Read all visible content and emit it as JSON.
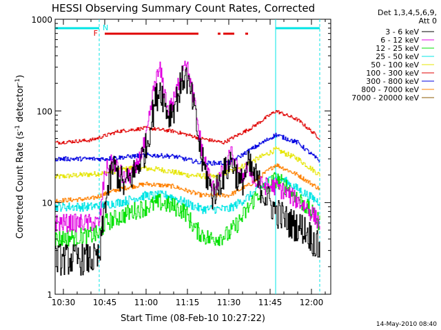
{
  "chart_data": {
    "type": "line",
    "title": "HESSI Observing Summary Count Rates, Corrected",
    "ylabel_main": "Corrected Count Rate (s",
    "ylabel_exp1": "-1",
    "ylabel_mid": " detector",
    "ylabel_exp2": "-1",
    "ylabel_end": ")",
    "xlabel": "Start Time (08-Feb-10 10:27:22)",
    "timestamp": "14-May-2010 08:40",
    "y_scale": "log",
    "ylim": [
      1,
      1000
    ],
    "xlim": [
      "10:27",
      "12:07"
    ],
    "x_ticks": [
      "10:30",
      "10:45",
      "11:00",
      "11:15",
      "11:30",
      "11:45",
      "12:00"
    ],
    "y_ticks": [
      "1",
      "10",
      "100",
      "1000"
    ],
    "legend_header": [
      "Det 1,3,4,5,6,9,",
      "Att 0"
    ],
    "flag_labels": {
      "night": "N",
      "flare": "F"
    },
    "flag_bars": [
      {
        "flag": "night",
        "color": "#00e5e5",
        "segments": [
          [
            "10:27",
            "10:43"
          ],
          [
            "11:47",
            "12:03"
          ]
        ]
      },
      {
        "flag": "flare",
        "color": "#e00000",
        "segments": [
          [
            "10:45",
            "11:19"
          ],
          [
            "11:26",
            "11:27"
          ],
          [
            "11:28",
            "11:32"
          ],
          [
            "11:36",
            "11:37"
          ]
        ]
      }
    ],
    "vlines": [
      {
        "x": "10:43",
        "style": "dashed",
        "color": "#00e5e5"
      },
      {
        "x": "11:47",
        "style": "solid",
        "color": "#00e5e5"
      },
      {
        "x": "12:03",
        "style": "dashed",
        "color": "#00e5e5"
      }
    ],
    "series": [
      {
        "name": "3 - 6 keV",
        "color": "#000000",
        "noise": 0.35,
        "points": [
          [
            "10:27",
            2.4
          ],
          [
            "10:43",
            2.4
          ],
          [
            "10:45",
            10
          ],
          [
            "10:48",
            25
          ],
          [
            "10:52",
            15
          ],
          [
            "10:56",
            22
          ],
          [
            "11:00",
            40
          ],
          [
            "11:03",
            120
          ],
          [
            "11:05",
            185
          ],
          [
            "11:08",
            90
          ],
          [
            "11:10",
            110
          ],
          [
            "11:14",
            260
          ],
          [
            "11:17",
            120
          ],
          [
            "11:20",
            30
          ],
          [
            "11:24",
            12
          ],
          [
            "11:28",
            20
          ],
          [
            "11:31",
            30
          ],
          [
            "11:34",
            15
          ],
          [
            "11:37",
            25
          ],
          [
            "11:40",
            18
          ],
          [
            "11:43",
            12
          ],
          [
            "11:47",
            8
          ],
          [
            "11:52",
            6
          ],
          [
            "11:58",
            5
          ],
          [
            "12:03",
            3
          ]
        ]
      },
      {
        "name": "6 - 12 keV",
        "color": "#e000e0",
        "noise": 0.2,
        "points": [
          [
            "10:27",
            6
          ],
          [
            "10:43",
            6
          ],
          [
            "10:45",
            22
          ],
          [
            "10:48",
            28
          ],
          [
            "10:52",
            18
          ],
          [
            "10:56",
            22
          ],
          [
            "11:00",
            50
          ],
          [
            "11:03",
            200
          ],
          [
            "11:05",
            280
          ],
          [
            "11:08",
            100
          ],
          [
            "11:10",
            130
          ],
          [
            "11:14",
            380
          ],
          [
            "11:17",
            150
          ],
          [
            "11:20",
            40
          ],
          [
            "11:24",
            14
          ],
          [
            "11:28",
            22
          ],
          [
            "11:31",
            35
          ],
          [
            "11:34",
            18
          ],
          [
            "11:37",
            25
          ],
          [
            "11:40",
            16
          ],
          [
            "11:44",
            15
          ],
          [
            "11:47",
            15
          ],
          [
            "11:52",
            12
          ],
          [
            "11:58",
            9
          ],
          [
            "12:03",
            6
          ]
        ]
      },
      {
        "name": "12 - 25 keV",
        "color": "#00e000",
        "noise": 0.2,
        "points": [
          [
            "10:27",
            4
          ],
          [
            "10:43",
            4.5
          ],
          [
            "10:45",
            6
          ],
          [
            "10:55",
            8
          ],
          [
            "11:05",
            10
          ],
          [
            "11:10",
            9
          ],
          [
            "11:14",
            8
          ],
          [
            "11:18",
            5
          ],
          [
            "11:23",
            4
          ],
          [
            "11:30",
            4.5
          ],
          [
            "11:35",
            7
          ],
          [
            "11:40",
            12
          ],
          [
            "11:47",
            18
          ],
          [
            "11:52",
            14
          ],
          [
            "11:58",
            9
          ],
          [
            "12:03",
            6
          ]
        ]
      },
      {
        "name": "25 - 50 keV",
        "color": "#00e5e5",
        "noise": 0.1,
        "points": [
          [
            "10:27",
            9
          ],
          [
            "10:40",
            9
          ],
          [
            "10:50",
            10
          ],
          [
            "11:00",
            12
          ],
          [
            "11:08",
            12
          ],
          [
            "11:14",
            10
          ],
          [
            "11:20",
            8.5
          ],
          [
            "11:30",
            8.5
          ],
          [
            "11:38",
            12
          ],
          [
            "11:47",
            20
          ],
          [
            "11:55",
            14
          ],
          [
            "12:03",
            10
          ]
        ]
      },
      {
        "name": "50 - 100 keV",
        "color": "#e5e500",
        "noise": 0.06,
        "points": [
          [
            "10:27",
            19
          ],
          [
            "10:45",
            21
          ],
          [
            "10:55",
            24
          ],
          [
            "11:05",
            23
          ],
          [
            "11:15",
            20
          ],
          [
            "11:25",
            19
          ],
          [
            "11:35",
            25
          ],
          [
            "11:47",
            38
          ],
          [
            "11:55",
            30
          ],
          [
            "12:03",
            20
          ]
        ]
      },
      {
        "name": "100 - 300 keV",
        "color": "#e00000",
        "noise": 0.04,
        "points": [
          [
            "10:27",
            45
          ],
          [
            "10:40",
            48
          ],
          [
            "10:50",
            60
          ],
          [
            "11:00",
            65
          ],
          [
            "11:10",
            60
          ],
          [
            "11:20",
            50
          ],
          [
            "11:28",
            45
          ],
          [
            "11:38",
            65
          ],
          [
            "11:47",
            100
          ],
          [
            "11:55",
            80
          ],
          [
            "12:03",
            50
          ]
        ]
      },
      {
        "name": "300 - 800 keV",
        "color": "#0000e0",
        "noise": 0.05,
        "points": [
          [
            "10:27",
            30
          ],
          [
            "10:45",
            30
          ],
          [
            "11:00",
            33
          ],
          [
            "11:10",
            32
          ],
          [
            "11:20",
            27
          ],
          [
            "11:30",
            27
          ],
          [
            "11:38",
            38
          ],
          [
            "11:47",
            55
          ],
          [
            "11:55",
            45
          ],
          [
            "12:03",
            28
          ]
        ]
      },
      {
        "name": "800 - 7000 keV",
        "color": "#ff8000",
        "noise": 0.05,
        "points": [
          [
            "10:27",
            10.5
          ],
          [
            "10:40",
            11
          ],
          [
            "10:50",
            14
          ],
          [
            "11:00",
            16
          ],
          [
            "11:10",
            15
          ],
          [
            "11:20",
            12
          ],
          [
            "11:30",
            12
          ],
          [
            "11:38",
            16
          ],
          [
            "11:47",
            26
          ],
          [
            "11:55",
            20
          ],
          [
            "12:03",
            14
          ]
        ]
      },
      {
        "name": "7000 - 20000 keV",
        "color": "#8b5a00",
        "noise": 0,
        "points": []
      }
    ]
  }
}
